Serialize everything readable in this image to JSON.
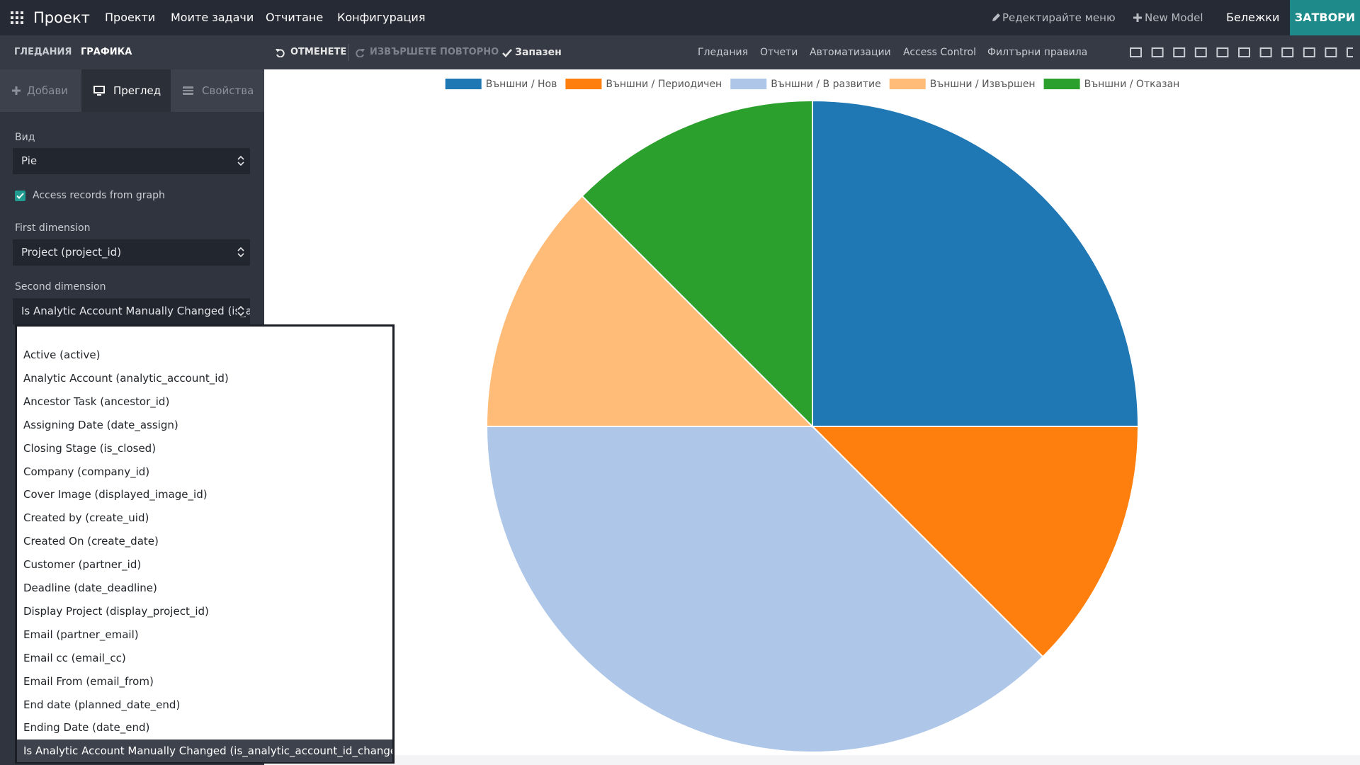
{
  "top_nav": {
    "app": "Проект",
    "menus": [
      "Проекти",
      "Моите задачи",
      "Отчитане",
      "Конфигурация"
    ],
    "edit_menu": "Редектирайте меню",
    "new_model": "New Model",
    "notes": "Бележки",
    "close": "ЗАТВОРИ"
  },
  "toolbar": {
    "tabs": [
      "ГЛЕДАНИЯ",
      "ГРАФИКА"
    ],
    "undo": "ОТМЕНЕТЕ",
    "redo": "ИЗВЪРШЕТЕ ПОВТОРНО",
    "saved": "Запазен",
    "links": [
      "Гледания",
      "Отчети",
      "Автоматизации",
      "Access Control",
      "Филтърни правила"
    ]
  },
  "sidebar": {
    "tabs": [
      "Добави",
      "Преглед",
      "Свойства"
    ],
    "view_label": "Вид",
    "view_value": "Pie",
    "access_records": "Access records from graph",
    "first_dimension_label": "First dimension",
    "first_dimension_value": "Project (project_id)",
    "second_dimension_label": "Second dimension",
    "second_dimension_value": "Is Analytic Account Manually Changed (is_analytic_account_id_changed)"
  },
  "dropdown": {
    "options": [
      "Active (active)",
      "Analytic Account (analytic_account_id)",
      "Ancestor Task (ancestor_id)",
      "Assigning Date (date_assign)",
      "Closing Stage (is_closed)",
      "Company (company_id)",
      "Cover Image (displayed_image_id)",
      "Created by (create_uid)",
      "Created On (create_date)",
      "Customer (partner_id)",
      "Deadline (date_deadline)",
      "Display Project (display_project_id)",
      "Email (partner_email)",
      "Email cc (email_cc)",
      "Email From (email_from)",
      "End date (planned_date_end)",
      "Ending Date (date_end)",
      "Is Analytic Account Manually Changed (is_analytic_account_id_changed)"
    ]
  },
  "chart_data": {
    "type": "pie",
    "categories": [
      "Външни / Нов",
      "Външни / Периодичен",
      "Външни / В развитие",
      "Външни / Извършен",
      "Външни / Отказан"
    ],
    "values": [
      2,
      1,
      3,
      1,
      1
    ],
    "colors": [
      "#1f77b4",
      "#ff7f0e",
      "#aec7e8",
      "#ffbb78",
      "#2ca02c"
    ],
    "legend": "top"
  }
}
